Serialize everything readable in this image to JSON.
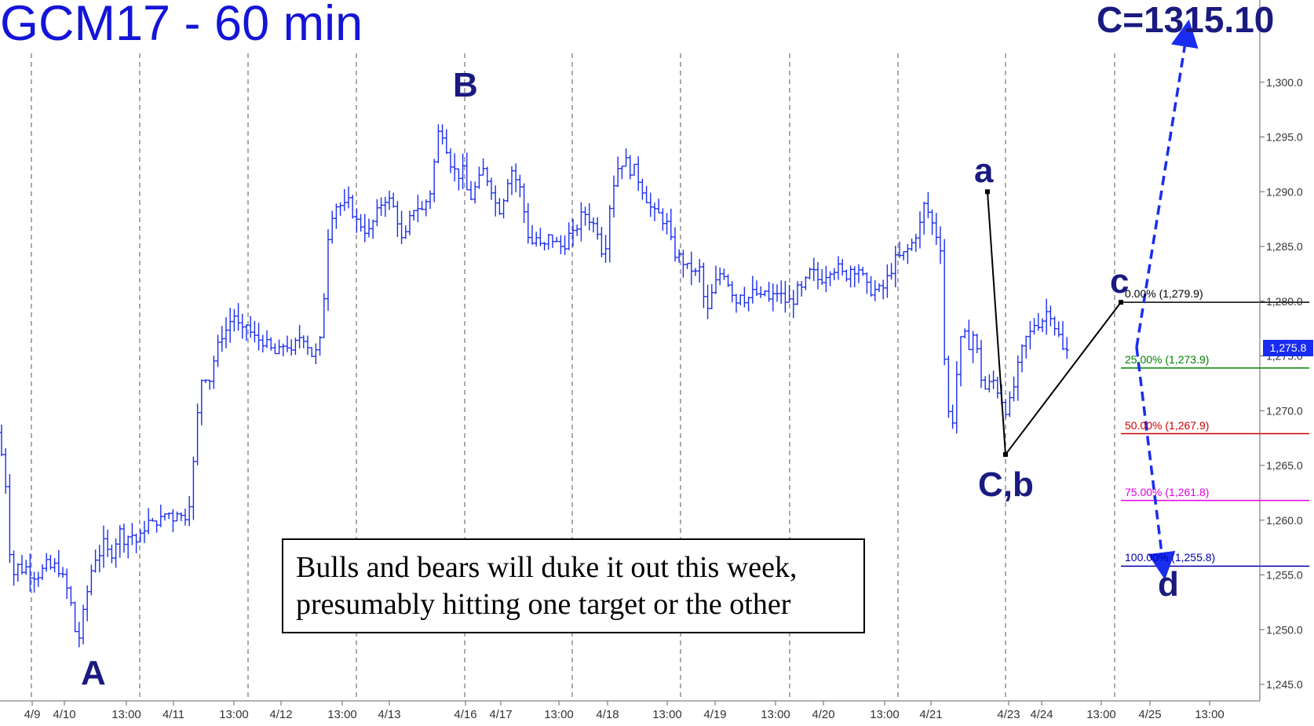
{
  "title": "GCM17 - 60 min",
  "target_label": "C=1315.10",
  "annotation": {
    "line1": "Bulls and bears will duke it out this week,",
    "line2": "presumably hitting one target or the other"
  },
  "last_price": "1,275.8",
  "colors": {
    "bars": "#1a2cf0",
    "labels": "#1a1a80",
    "title": "#1414d8",
    "projection": "#1a2cf0",
    "fib_0": "#000000",
    "fib_25": "#008000",
    "fib_50": "#cc0000",
    "fib_75": "#e000e0",
    "fib_100": "#0000aa"
  },
  "wave_labels": {
    "A": "A",
    "B": "B",
    "a": "a",
    "Cb": "C,b",
    "c": "c",
    "d": "d"
  },
  "fib_levels": [
    {
      "label": "0.00% (1,279.9)",
      "price": 1279.9,
      "color": "#000000"
    },
    {
      "label": "25.00% (1,273.9)",
      "price": 1273.9,
      "color": "#008000"
    },
    {
      "label": "50.00% (1,267.9)",
      "price": 1267.9,
      "color": "#cc0000"
    },
    {
      "label": "75.00% (1,261.8)",
      "price": 1261.8,
      "color": "#e000e0"
    },
    {
      "label": "100.00% (1,255.8)",
      "price": 1255.8,
      "color": "#0000aa"
    }
  ],
  "chart_data": {
    "type": "ohlc",
    "symbol": "GCM17",
    "interval": "60 min",
    "ylim": [
      1244,
      1310
    ],
    "y_ticks": [
      1245,
      1250,
      1255,
      1260,
      1265,
      1270,
      1275,
      1280,
      1285,
      1290,
      1295,
      1300
    ],
    "y_tick_labels": [
      "1,245.0",
      "1,250.0",
      "1,255.0",
      "1,260.0",
      "1,265.0",
      "1,270.0",
      "1,275.0",
      "1,280.0",
      "1,285.0",
      "1,290.0",
      "1,295.0",
      "1,300.0"
    ],
    "x_labels": [
      "4/9",
      "4/10",
      "13:00",
      "4/11",
      "13:00",
      "4/12",
      "13:00",
      "4/13",
      "4/16",
      "4/17",
      "13:00",
      "4/18",
      "13:00",
      "4/19",
      "13:00",
      "4/20",
      "13:00",
      "4/21",
      "4/23",
      "4/24",
      "13:00",
      "4/25",
      "13:00"
    ],
    "grid": "vertical-dashed",
    "pivots": [
      {
        "label": "A",
        "price": 1248.0
      },
      {
        "label": "B",
        "price": 1297.5
      },
      {
        "label": "a",
        "price": 1290.0
      },
      {
        "label": "C,b",
        "price": 1266.0
      },
      {
        "label": "c",
        "price": 1279.9
      }
    ],
    "targets": [
      {
        "label": "C",
        "price": 1315.1
      },
      {
        "label": "d",
        "price": 1255.8
      }
    ],
    "price_path": [
      [
        0,
        1268
      ],
      [
        3,
        1265
      ],
      [
        8,
        1263
      ],
      [
        13,
        1256.5
      ],
      [
        18,
        1255
      ],
      [
        22,
        1256
      ],
      [
        26,
        1255
      ],
      [
        30,
        1256
      ],
      [
        35,
        1255.5
      ],
      [
        40,
        1255
      ],
      [
        48,
        1255
      ],
      [
        55,
        1255.5
      ],
      [
        60,
        1256
      ],
      [
        66,
        1255.5
      ],
      [
        72,
        1256
      ],
      [
        78,
        1255
      ],
      [
        84,
        1254
      ],
      [
        90,
        1252.5
      ],
      [
        95,
        1250
      ],
      [
        100,
        1249
      ],
      [
        105,
        1251
      ],
      [
        110,
        1253
      ],
      [
        115,
        1255
      ],
      [
        120,
        1256.5
      ],
      [
        127,
        1257
      ],
      [
        133,
        1258
      ],
      [
        140,
        1256.5
      ],
      [
        147,
        1258
      ],
      [
        153,
        1259
      ],
      [
        160,
        1258
      ],
      [
        166,
        1259
      ],
      [
        173,
        1258
      ],
      [
        180,
        1258.5
      ],
      [
        187,
        1260
      ],
      [
        193,
        1259.5
      ],
      [
        200,
        1260
      ],
      [
        206,
        1260
      ],
      [
        213,
        1261
      ],
      [
        219,
        1260
      ],
      [
        226,
        1261
      ],
      [
        233,
        1260
      ],
      [
        240,
        1261
      ],
      [
        245,
        1264
      ],
      [
        250,
        1268
      ],
      [
        253,
        1271
      ],
      [
        257,
        1273
      ],
      [
        260,
        1274
      ],
      [
        265,
        1272
      ],
      [
        270,
        1274
      ],
      [
        276,
        1275.5
      ],
      [
        283,
        1277
      ],
      [
        290,
        1277.5
      ],
      [
        297,
        1279
      ],
      [
        302,
        1278
      ],
      [
        308,
        1277
      ],
      [
        313,
        1278
      ],
      [
        320,
        1277
      ],
      [
        326,
        1276.5
      ],
      [
        333,
        1276.5
      ],
      [
        340,
        1276
      ],
      [
        346,
        1275.5
      ],
      [
        353,
        1275
      ],
      [
        360,
        1276
      ],
      [
        366,
        1276
      ],
      [
        372,
        1275
      ],
      [
        378,
        1276.5
      ],
      [
        385,
        1277
      ],
      [
        392,
        1276
      ],
      [
        398,
        1275
      ],
      [
        405,
        1275.5
      ],
      [
        410,
        1277
      ],
      [
        414,
        1282
      ],
      [
        418,
        1286
      ],
      [
        423,
        1288
      ],
      [
        430,
        1289
      ],
      [
        437,
        1288.5
      ],
      [
        444,
        1289
      ],
      [
        450,
        1288
      ],
      [
        456,
        1287
      ],
      [
        462,
        1287
      ],
      [
        468,
        1286
      ],
      [
        474,
        1287
      ],
      [
        480,
        1288
      ],
      [
        486,
        1289
      ],
      [
        492,
        1289.5
      ],
      [
        498,
        1289
      ],
      [
        505,
        1288
      ],
      [
        511,
        1285.5
      ],
      [
        517,
        1286
      ],
      [
        524,
        1288
      ],
      [
        530,
        1289
      ],
      [
        536,
        1288
      ],
      [
        542,
        1289
      ],
      [
        548,
        1290
      ],
      [
        551,
        1291
      ],
      [
        555,
        1294
      ],
      [
        560,
        1296
      ],
      [
        566,
        1295
      ],
      [
        572,
        1293
      ],
      [
        578,
        1292
      ],
      [
        585,
        1291.5
      ],
      [
        591,
        1292
      ],
      [
        597,
        1289
      ],
      [
        603,
        1290
      ],
      [
        610,
        1291
      ],
      [
        616,
        1292
      ],
      [
        622,
        1291
      ],
      [
        628,
        1290
      ],
      [
        634,
        1288
      ],
      [
        640,
        1289
      ],
      [
        646,
        1291
      ],
      [
        652,
        1292
      ],
      [
        658,
        1291
      ],
      [
        664,
        1290
      ],
      [
        670,
        1287
      ],
      [
        676,
        1285
      ],
      [
        682,
        1286
      ],
      [
        688,
        1285
      ],
      [
        694,
        1285
      ],
      [
        700,
        1286
      ],
      [
        706,
        1285.5
      ],
      [
        712,
        1285
      ],
      [
        718,
        1285
      ],
      [
        724,
        1286
      ],
      [
        730,
        1286
      ],
      [
        736,
        1287
      ],
      [
        742,
        1288
      ],
      [
        748,
        1288
      ],
      [
        754,
        1287
      ],
      [
        760,
        1287
      ],
      [
        765,
        1285
      ],
      [
        770,
        1284
      ],
      [
        775,
        1288
      ],
      [
        780,
        1290
      ],
      [
        785,
        1292
      ],
      [
        790,
        1292.5
      ],
      [
        796,
        1293
      ],
      [
        802,
        1292
      ],
      [
        808,
        1292
      ],
      [
        814,
        1291
      ],
      [
        820,
        1290
      ],
      [
        826,
        1289
      ],
      [
        832,
        1288
      ],
      [
        838,
        1288
      ],
      [
        844,
        1287.5
      ],
      [
        850,
        1287
      ],
      [
        856,
        1285
      ],
      [
        862,
        1284
      ],
      [
        868,
        1284
      ],
      [
        874,
        1283
      ],
      [
        880,
        1283
      ],
      [
        886,
        1282.5
      ],
      [
        892,
        1283
      ],
      [
        897,
        1280
      ],
      [
        902,
        1279
      ],
      [
        908,
        1281
      ],
      [
        914,
        1282
      ],
      [
        920,
        1283
      ],
      [
        926,
        1282
      ],
      [
        932,
        1281
      ],
      [
        938,
        1280
      ],
      [
        944,
        1281
      ],
      [
        950,
        1280
      ],
      [
        956,
        1280.5
      ],
      [
        962,
        1281
      ],
      [
        968,
        1280
      ],
      [
        974,
        1281
      ],
      [
        980,
        1280
      ],
      [
        986,
        1280.5
      ],
      [
        992,
        1281
      ],
      [
        998,
        1280
      ],
      [
        1004,
        1280
      ],
      [
        1010,
        1280
      ],
      [
        1016,
        1281
      ],
      [
        1022,
        1281
      ],
      [
        1028,
        1282
      ],
      [
        1034,
        1283
      ],
      [
        1040,
        1282
      ],
      [
        1046,
        1282
      ],
      [
        1052,
        1282.5
      ],
      [
        1058,
        1283
      ],
      [
        1064,
        1283
      ],
      [
        1070,
        1283
      ],
      [
        1076,
        1282
      ],
      [
        1082,
        1283
      ],
      [
        1088,
        1283
      ],
      [
        1094,
        1283
      ],
      [
        1100,
        1282
      ],
      [
        1106,
        1281
      ],
      [
        1112,
        1281
      ],
      [
        1118,
        1281
      ],
      [
        1124,
        1281
      ],
      [
        1130,
        1282
      ],
      [
        1136,
        1283
      ],
      [
        1142,
        1284
      ],
      [
        1148,
        1284
      ],
      [
        1154,
        1284.5
      ],
      [
        1160,
        1285
      ],
      [
        1166,
        1286
      ],
      [
        1172,
        1287
      ],
      [
        1178,
        1289
      ],
      [
        1183,
        1288
      ],
      [
        1188,
        1287
      ],
      [
        1193,
        1286
      ],
      [
        1198,
        1285
      ],
      [
        1203,
        1275
      ],
      [
        1208,
        1270
      ],
      [
        1212,
        1268
      ],
      [
        1216,
        1271
      ],
      [
        1222,
        1276
      ],
      [
        1228,
        1277
      ],
      [
        1234,
        1276
      ],
      [
        1240,
        1277
      ],
      [
        1246,
        1275
      ],
      [
        1252,
        1272
      ],
      [
        1258,
        1272
      ],
      [
        1264,
        1273
      ],
      [
        1270,
        1272
      ],
      [
        1276,
        1271
      ],
      [
        1282,
        1270
      ],
      [
        1288,
        1271
      ],
      [
        1294,
        1273
      ],
      [
        1300,
        1275
      ],
      [
        1306,
        1276.5
      ],
      [
        1312,
        1277
      ],
      [
        1318,
        1278
      ],
      [
        1324,
        1278
      ],
      [
        1330,
        1278.5
      ],
      [
        1336,
        1279.5
      ],
      [
        1342,
        1278
      ],
      [
        1348,
        1277
      ],
      [
        1352,
        1276
      ],
      [
        1356,
        1275
      ],
      [
        1360,
        1275.5
      ],
      [
        1363,
        1275.8
      ]
    ]
  }
}
